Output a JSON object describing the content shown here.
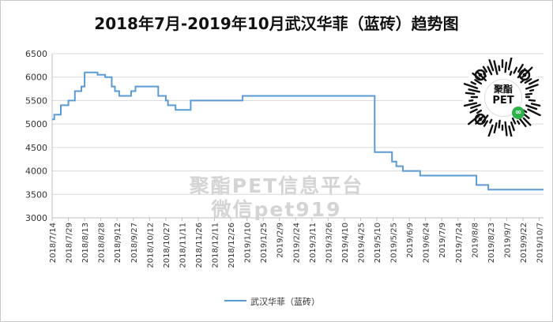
{
  "chart_data": {
    "type": "line",
    "title": "2018年7月-2019年10月武汉华菲（蓝砖）趋势图",
    "xlabel": "",
    "ylabel": "",
    "ylim": [
      3000,
      6500
    ],
    "yticks": [
      3000,
      3500,
      4000,
      4500,
      5000,
      5500,
      6000,
      6500
    ],
    "xticks": [
      "2018/7/14",
      "2018/7/29",
      "2018/8/13",
      "2018/8/28",
      "2018/9/12",
      "2018/9/27",
      "2018/10/12",
      "2018/10/27",
      "2018/11/11",
      "2018/11/26",
      "2018/12/11",
      "2018/12/26",
      "2019/1/10",
      "2019/1/25",
      "2019/2/9",
      "2019/2/24",
      "2019/3/11",
      "2019/3/26",
      "2019/4/10",
      "2019/4/25",
      "2019/5/10",
      "2019/5/25",
      "2019/6/9",
      "2019/6/24",
      "2019/7/9",
      "2019/7/24",
      "2019/8/8",
      "2019/8/23",
      "2019/9/7",
      "2019/9/22",
      "2019/10/7"
    ],
    "grid": true,
    "legend_position": "bottom",
    "series": [
      {
        "name": "武汉华菲（蓝砖）",
        "color": "#5b9bd5",
        "points": [
          [
            "2018-07-14",
            5100
          ],
          [
            "2018-07-16",
            5200
          ],
          [
            "2018-07-22",
            5400
          ],
          [
            "2018-07-29",
            5500
          ],
          [
            "2018-08-04",
            5700
          ],
          [
            "2018-08-10",
            5800
          ],
          [
            "2018-08-13",
            6100
          ],
          [
            "2018-08-25",
            6050
          ],
          [
            "2018-09-01",
            6000
          ],
          [
            "2018-09-07",
            5800
          ],
          [
            "2018-09-10",
            5700
          ],
          [
            "2018-09-14",
            5600
          ],
          [
            "2018-09-25",
            5700
          ],
          [
            "2018-09-29",
            5800
          ],
          [
            "2018-10-20",
            5600
          ],
          [
            "2018-10-27",
            5500
          ],
          [
            "2018-10-29",
            5400
          ],
          [
            "2018-11-05",
            5300
          ],
          [
            "2018-11-19",
            5500
          ],
          [
            "2019-01-06",
            5600
          ],
          [
            "2019-05-08",
            4400
          ],
          [
            "2019-05-24",
            4200
          ],
          [
            "2019-05-28",
            4100
          ],
          [
            "2019-06-03",
            4000
          ],
          [
            "2019-06-19",
            3900
          ],
          [
            "2019-08-10",
            3700
          ],
          [
            "2019-08-21",
            3600
          ],
          [
            "2019-10-11",
            3600
          ]
        ]
      }
    ]
  },
  "watermark": {
    "line1": "聚酯PET信息平台",
    "line2": "微信pet919"
  },
  "qr_badge": {
    "line1": "聚酯",
    "line2": "PET"
  }
}
